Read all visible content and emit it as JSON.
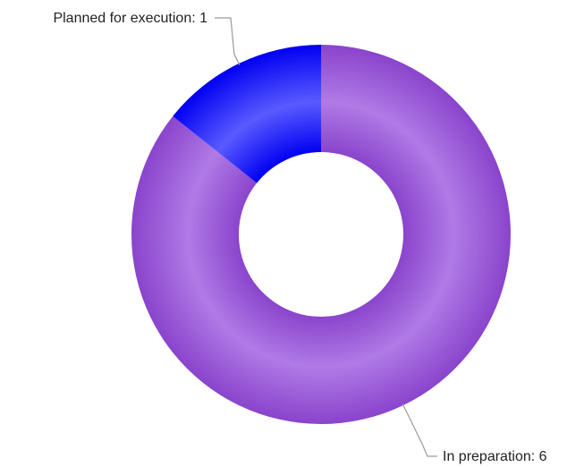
{
  "chart_data": {
    "type": "pie",
    "variant": "donut",
    "title": "",
    "slices": [
      {
        "label": "In preparation",
        "value": 6,
        "color": "#8a44cc",
        "highlight": "#b07ae6",
        "label_text": "In preparation: 6",
        "label_side": "bottom-right"
      },
      {
        "label": "Planned for execution",
        "value": 1,
        "color": "#0000f2",
        "highlight": "#5a5aff",
        "label_text": "Planned for execution: 1",
        "label_side": "top-left"
      }
    ],
    "legend": "none",
    "start_angle_deg": 0,
    "direction": "clockwise"
  }
}
